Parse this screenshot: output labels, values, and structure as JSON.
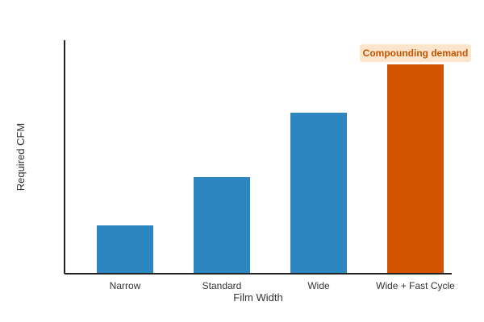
{
  "chart_data": {
    "type": "bar",
    "categories": [
      "Narrow",
      "Standard",
      "Wide",
      "Wide + Fast Cycle"
    ],
    "values": [
      30,
      60,
      100,
      130
    ],
    "xlabel": "Film Width",
    "ylabel": "Required CFM",
    "ylim": [
      0,
      145
    ],
    "grid": false,
    "y_ticks_shown": false,
    "colors": {
      "default_bar": "#2e86c1",
      "highlight_bar": "#d35400",
      "axis": "#222222",
      "annotation_bg": "#fde5cc",
      "annotation_text": "#c25400"
    },
    "highlight_index": 3,
    "annotation": {
      "text": "Compounding demand",
      "category_index": 3
    }
  }
}
